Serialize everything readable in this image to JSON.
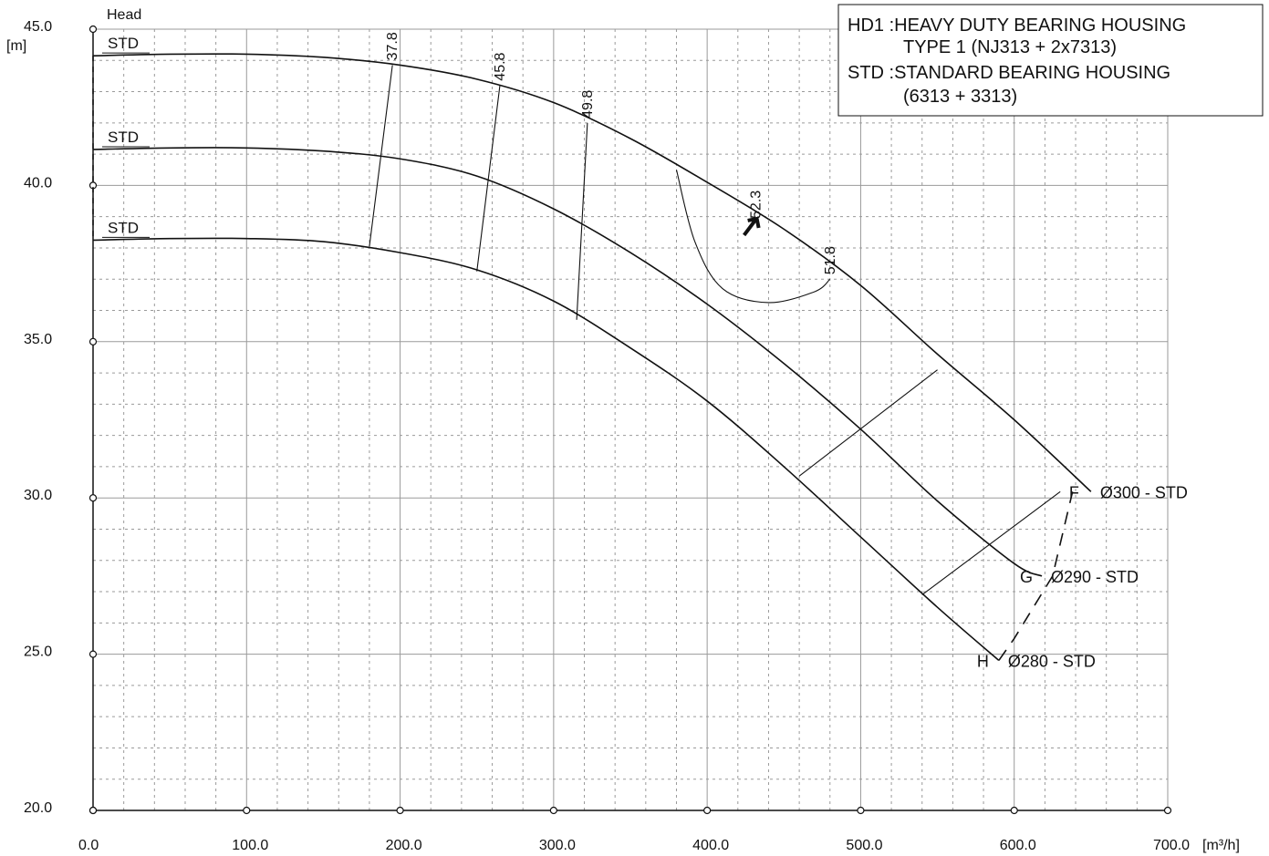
{
  "chart_data": {
    "type": "line",
    "ylabel_top": "Head",
    "yunit": "[m]",
    "xunit": "[m³/h]",
    "xlim": [
      0,
      700
    ],
    "ylim": [
      20,
      45
    ],
    "xticks": [
      0,
      100,
      200,
      300,
      400,
      500,
      600,
      700
    ],
    "xtick_labels": [
      "0.0",
      "100.0",
      "200.0",
      "300.0",
      "400.0",
      "500.0",
      "600.0",
      "700.0"
    ],
    "yticks": [
      20,
      25,
      30,
      35,
      40,
      45
    ],
    "ytick_labels": [
      "20.0",
      "25.0",
      "30.0",
      "35.0",
      "40.0",
      "45.0"
    ],
    "grid": true,
    "legend_position": "top-right",
    "legend_lines": [
      "HD1 :HEAVY DUTY BEARING HOUSING",
      "TYPE 1 (NJ313 + 2x7313)",
      "STD :STANDARD BEARING HOUSING",
      "(6313 + 3313)"
    ],
    "series": [
      {
        "name": "Ø300 - STD",
        "letter": "F",
        "start_label": "STD",
        "x": [
          0,
          50,
          100,
          150,
          200,
          250,
          300,
          350,
          400,
          450,
          500,
          550,
          600,
          650
        ],
        "y": [
          44.15,
          44.2,
          44.2,
          44.1,
          43.85,
          43.4,
          42.65,
          41.5,
          40.1,
          38.6,
          36.8,
          34.6,
          32.5,
          30.2
        ]
      },
      {
        "name": "Ø290 - STD",
        "letter": "G",
        "start_label": "STD",
        "x": [
          0,
          50,
          100,
          150,
          200,
          250,
          300,
          350,
          400,
          450,
          500,
          550,
          600,
          618
        ],
        "y": [
          41.15,
          41.2,
          41.2,
          41.1,
          40.85,
          40.3,
          39.25,
          37.85,
          36.2,
          34.3,
          32.2,
          29.9,
          27.9,
          27.5
        ]
      },
      {
        "name": "Ø280 - STD",
        "letter": "H",
        "start_label": "STD",
        "x": [
          0,
          50,
          100,
          150,
          200,
          250,
          300,
          350,
          400,
          450,
          500,
          550,
          590
        ],
        "y": [
          38.25,
          38.3,
          38.3,
          38.2,
          37.85,
          37.3,
          36.3,
          34.8,
          33.1,
          31.0,
          28.75,
          26.5,
          24.8
        ]
      }
    ],
    "efficiency_lines": [
      {
        "label": "37.8",
        "x": [
          180,
          195
        ],
        "y": [
          38.05,
          43.85
        ]
      },
      {
        "label": "45.8",
        "x": [
          250,
          265
        ],
        "y": [
          37.25,
          43.2
        ]
      },
      {
        "label": "49.8",
        "x": [
          315,
          322
        ],
        "y": [
          35.7,
          42.0
        ]
      },
      {
        "label": "51.8",
        "x": [
          380,
          392,
          410,
          440,
          470,
          480
        ],
        "y": [
          40.5,
          38.2,
          36.7,
          36.25,
          36.6,
          37.0
        ]
      },
      {
        "label": "52.3",
        "marker": "best efficiency point",
        "x": [
          430
        ],
        "y": [
          38.7
        ]
      }
    ],
    "operating_lines": [
      {
        "x": [
          460,
          550
        ],
        "y": [
          30.7,
          34.1
        ]
      },
      {
        "x": [
          540,
          630
        ],
        "y": [
          26.9,
          30.2
        ]
      }
    ],
    "end_of_curve_line": {
      "x": [
        590,
        600,
        625,
        638
      ],
      "y": [
        24.8,
        25.5,
        27.5,
        30.2
      ],
      "style": "dashed"
    }
  }
}
